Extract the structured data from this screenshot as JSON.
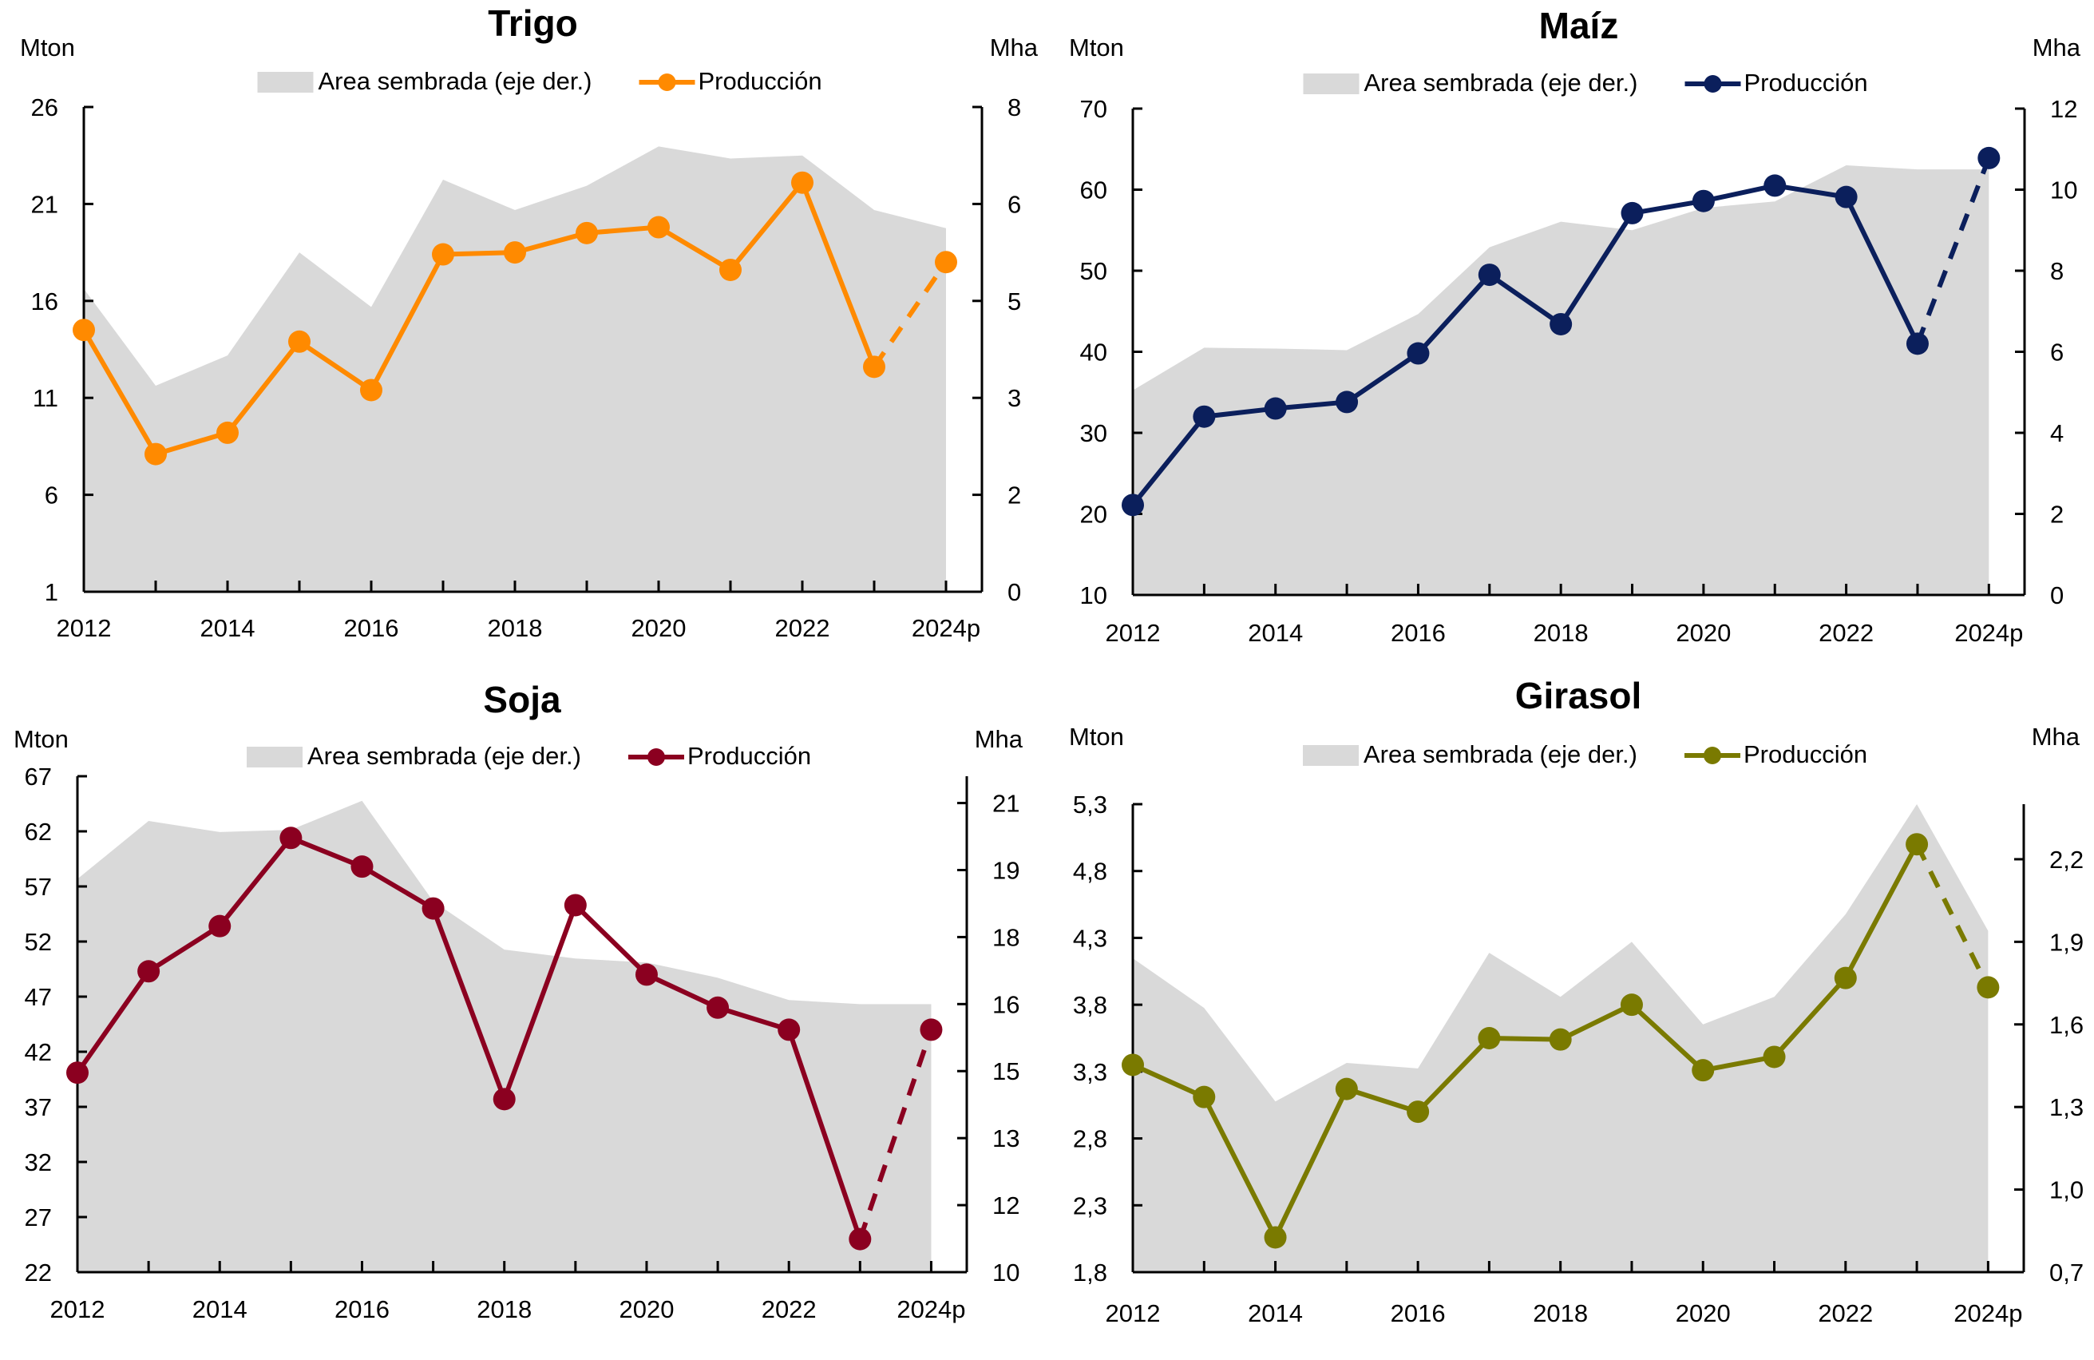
{
  "chart_data": [
    {
      "type": "line+area",
      "title": "Trigo",
      "left_unit": "Mton",
      "right_unit": "Mha",
      "categories": [
        "2012",
        "2013",
        "2014",
        "2015",
        "2016",
        "2017",
        "2018",
        "2019",
        "2020",
        "2021",
        "2022",
        "2023",
        "2024p"
      ],
      "x_tick_labels": [
        "2012",
        "",
        "2014",
        "",
        "2016",
        "",
        "2018",
        "",
        "2020",
        "",
        "2022",
        "",
        "2024p"
      ],
      "left_axis": {
        "min": 1,
        "max": 26,
        "ticks": [
          1,
          6,
          11,
          16,
          21,
          26
        ],
        "tick_labels": [
          "1",
          "6",
          "11",
          "16",
          "21",
          "26"
        ]
      },
      "right_axis": {
        "min": 0,
        "max": 8,
        "ticks": [
          0,
          1.6,
          3.2,
          4.8,
          6.4,
          8
        ],
        "tick_labels": [
          "0",
          "2",
          "3",
          "5",
          "6",
          "8"
        ]
      },
      "legend": {
        "area_label": "Area sembrada (eje der.)",
        "line_label": "Producción",
        "placement": "top-center"
      },
      "colors": {
        "line": "#FF8A00",
        "area": "#D9D9D9"
      },
      "series": [
        {
          "name": "Area sembrada (eje der.)",
          "type": "area",
          "axis": "right",
          "values": [
            5.0,
            3.4,
            3.9,
            5.6,
            4.7,
            6.8,
            6.3,
            6.7,
            7.35,
            7.15,
            7.2,
            6.3,
            6.0
          ]
        },
        {
          "name": "Producción",
          "type": "line",
          "axis": "left",
          "values": [
            14.5,
            8.1,
            9.2,
            13.9,
            11.4,
            18.4,
            18.5,
            19.5,
            19.8,
            17.6,
            22.1,
            12.6,
            18.0
          ],
          "dashed_from_index": 11
        }
      ]
    },
    {
      "type": "line+area",
      "title": "Maíz",
      "left_unit": "Mton",
      "right_unit": "Mha",
      "categories": [
        "2012",
        "2013",
        "2014",
        "2015",
        "2016",
        "2017",
        "2018",
        "2019",
        "2020",
        "2021",
        "2022",
        "2023",
        "2024p"
      ],
      "x_tick_labels": [
        "2012",
        "",
        "2014",
        "",
        "2016",
        "",
        "2018",
        "",
        "2020",
        "",
        "2022",
        "",
        "2024p"
      ],
      "left_axis": {
        "min": 10,
        "max": 70,
        "ticks": [
          10,
          20,
          30,
          40,
          50,
          60,
          70
        ],
        "tick_labels": [
          "10",
          "20",
          "30",
          "40",
          "50",
          "60",
          "70"
        ]
      },
      "right_axis": {
        "min": 0,
        "max": 12,
        "ticks": [
          0,
          2,
          4,
          6,
          8,
          10,
          12
        ],
        "tick_labels": [
          "0",
          "2",
          "4",
          "6",
          "8",
          "10",
          "12"
        ]
      },
      "legend": {
        "area_label": "Area sembrada (eje der.)",
        "line_label": "Producción",
        "placement": "top-center"
      },
      "colors": {
        "line": "#0B1F5C",
        "area": "#D9D9D9"
      },
      "series": [
        {
          "name": "Area sembrada (eje der.)",
          "type": "area",
          "axis": "right",
          "values": [
            5.05,
            6.1,
            6.08,
            6.04,
            6.93,
            8.58,
            9.21,
            9.0,
            9.55,
            9.71,
            10.6,
            10.5,
            10.5
          ]
        },
        {
          "name": "Producción",
          "type": "line",
          "axis": "left",
          "values": [
            21.1,
            32.0,
            33.0,
            33.8,
            39.8,
            49.5,
            43.4,
            57.1,
            58.6,
            60.5,
            59.1,
            41.0,
            63.9
          ],
          "dashed_from_index": 11
        }
      ]
    },
    {
      "type": "line+area",
      "title": "Soja",
      "left_unit": "Mton",
      "right_unit": "Mha",
      "categories": [
        "2012",
        "2013",
        "2014",
        "2015",
        "2016",
        "2017",
        "2018",
        "2019",
        "2020",
        "2021",
        "2022",
        "2023",
        "2024p"
      ],
      "x_tick_labels": [
        "2012",
        "",
        "2014",
        "",
        "2016",
        "",
        "2018",
        "",
        "2020",
        "",
        "2022",
        "",
        "2024p"
      ],
      "left_axis": {
        "min": 22,
        "max": 67,
        "ticks": [
          22,
          27,
          32,
          37,
          42,
          47,
          52,
          57,
          62,
          67
        ],
        "tick_labels": [
          "22",
          "27",
          "32",
          "37",
          "42",
          "47",
          "52",
          "57",
          "62",
          "67"
        ]
      },
      "right_axis": {
        "min": 10,
        "max": 21.1,
        "ticks": [
          10,
          11.5,
          13,
          14.5,
          16,
          17.5,
          19,
          20.5
        ],
        "tick_labels": [
          "10",
          "12",
          "13",
          "15",
          "16",
          "18",
          "19",
          "21"
        ]
      },
      "legend": {
        "area_label": "Area sembrada (eje der.)",
        "line_label": "Producción",
        "placement": "top-center"
      },
      "colors": {
        "line": "#8B0020",
        "area": "#D9D9D9"
      },
      "series": [
        {
          "name": "Area sembrada (eje der.)",
          "type": "area",
          "axis": "right",
          "values": [
            18.8,
            20.1,
            19.85,
            19.9,
            20.55,
            18.3,
            17.22,
            17.02,
            16.93,
            16.59,
            16.09,
            16.0,
            16.0
          ]
        },
        {
          "name": "Producción",
          "type": "line",
          "axis": "left",
          "values": [
            40.1,
            49.3,
            53.4,
            61.4,
            58.8,
            55.0,
            37.7,
            55.3,
            49.0,
            46.0,
            44.0,
            25.0,
            44.0
          ],
          "dashed_from_index": 11
        }
      ]
    },
    {
      "type": "line+area",
      "title": "Girasol",
      "left_unit": "Mton",
      "right_unit": "Mha",
      "categories": [
        "2012",
        "2013",
        "2014",
        "2015",
        "2016",
        "2017",
        "2018",
        "2019",
        "2020",
        "2021",
        "2022",
        "2023",
        "2024p"
      ],
      "x_tick_labels": [
        "2012",
        "",
        "2014",
        "",
        "2016",
        "",
        "2018",
        "",
        "2020",
        "",
        "2022",
        "",
        "2024p"
      ],
      "left_axis": {
        "min": 1.8,
        "max": 5.3,
        "ticks": [
          1.8,
          2.3,
          2.8,
          3.3,
          3.8,
          4.3,
          4.8,
          5.3
        ],
        "tick_labels": [
          "1,8",
          "2,3",
          "2,8",
          "3,3",
          "3,8",
          "4,3",
          "4,8",
          "5,3"
        ]
      },
      "right_axis": {
        "min": 0.7,
        "max": 2.4,
        "ticks": [
          0.7,
          1.0,
          1.3,
          1.6,
          1.9,
          2.2
        ],
        "tick_labels": [
          "0,7",
          "1,0",
          "1,3",
          "1,6",
          "1,9",
          "2,2"
        ]
      },
      "legend": {
        "area_label": "Area sembrada (eje der.)",
        "line_label": "Producción",
        "placement": "top-center"
      },
      "colors": {
        "line": "#7A7A00",
        "area": "#D9D9D9"
      },
      "series": [
        {
          "name": "Area sembrada (eje der.)",
          "type": "area",
          "axis": "right",
          "values": [
            1.84,
            1.66,
            1.32,
            1.46,
            1.44,
            1.86,
            1.7,
            1.9,
            1.6,
            1.7,
            2.0,
            2.4,
            1.94
          ]
        },
        {
          "name": "Producción",
          "type": "line",
          "axis": "left",
          "values": [
            3.35,
            3.11,
            2.06,
            3.17,
            3.0,
            3.55,
            3.54,
            3.8,
            3.31,
            3.41,
            4.0,
            5.0,
            3.93
          ],
          "dashed_from_index": 11
        }
      ]
    }
  ]
}
